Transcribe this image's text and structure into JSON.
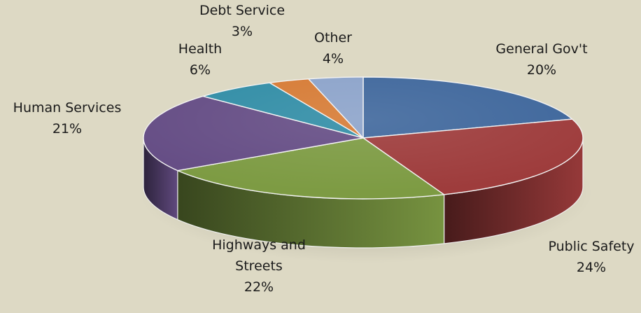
{
  "chart_data": {
    "type": "pie",
    "title": "",
    "style": "3d-tilted",
    "legend": "none",
    "slices": [
      {
        "label_lines": [
          "General Gov't"
        ],
        "percent_text": "20%",
        "value": 20,
        "color": "#3f679c"
      },
      {
        "label_lines": [
          "Public Safety"
        ],
        "percent_text": "24%",
        "value": 24,
        "color": "#9e3c3c"
      },
      {
        "label_lines": [
          "Highways and",
          "Streets"
        ],
        "percent_text": "22%",
        "value": 22,
        "color": "#7d9b43"
      },
      {
        "label_lines": [
          "Human Services"
        ],
        "percent_text": "21%",
        "value": 21,
        "color": "#654d85"
      },
      {
        "label_lines": [
          "Health"
        ],
        "percent_text": "6%",
        "value": 6,
        "color": "#318da6"
      },
      {
        "label_lines": [
          "Debt Service"
        ],
        "percent_text": "3%",
        "value": 3,
        "color": "#d67b35"
      },
      {
        "label_lines": [
          "Other"
        ],
        "percent_text": "4%",
        "value": 4,
        "color": "#8ca3ca"
      }
    ]
  }
}
